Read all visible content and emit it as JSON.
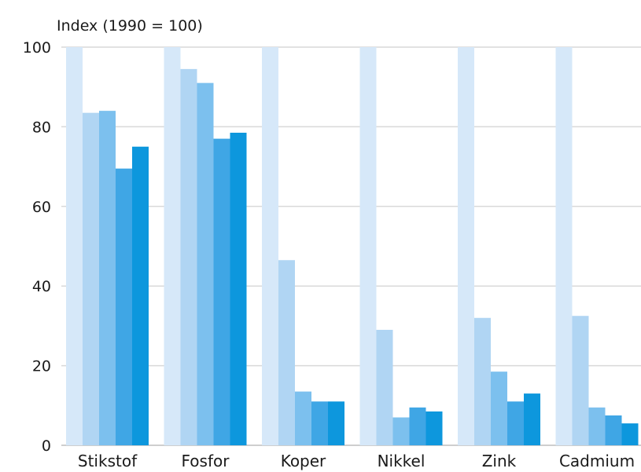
{
  "chart_data": {
    "type": "bar",
    "ylabel": "Index (1990 = 100)",
    "ylim": [
      0,
      100
    ],
    "yticks": [
      "0",
      "20",
      "40",
      "60",
      "80",
      "100"
    ],
    "grid": true,
    "categories": [
      "Stikstof",
      "Fosfor",
      "Koper",
      "Nikkel",
      "Zink",
      "Cadmium"
    ],
    "series": [
      {
        "values": [
          100,
          100,
          100,
          100,
          100,
          100
        ]
      },
      {
        "values": [
          83.5,
          94.5,
          46.5,
          29,
          32,
          32.5
        ]
      },
      {
        "values": [
          84,
          91,
          13.5,
          7,
          18.5,
          9.5
        ]
      },
      {
        "values": [
          69.5,
          77,
          11,
          9.5,
          11,
          7.5
        ]
      },
      {
        "values": [
          75,
          78.5,
          11,
          8.5,
          13,
          5.5
        ]
      }
    ],
    "colors": [
      "#d6e8f9",
      "#b0d5f3",
      "#7cc0ee",
      "#3fa6e5",
      "#0d97dd"
    ]
  }
}
